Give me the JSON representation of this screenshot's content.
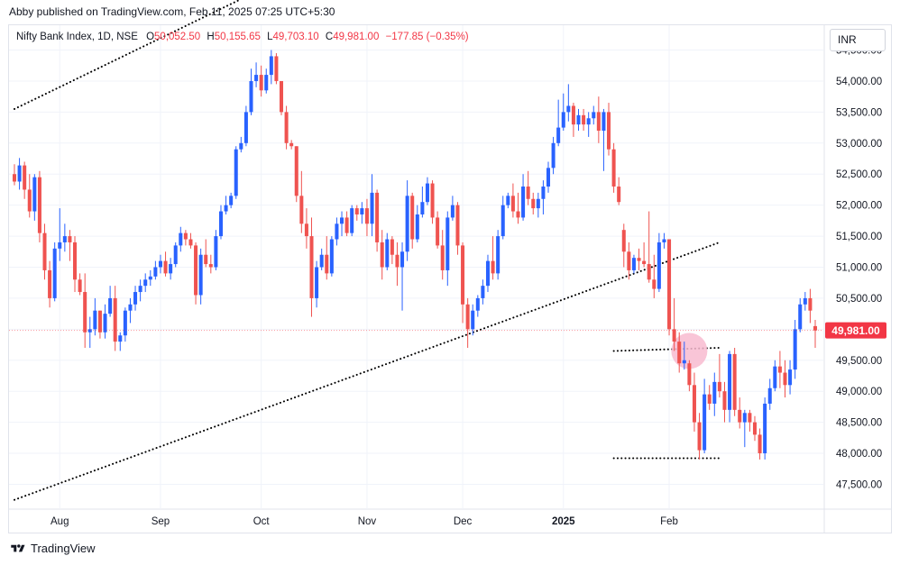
{
  "header": {
    "published_line": "Abby published on TradingView.com, Feb 11, 2025 07:25 UTC+5:30"
  },
  "legend": {
    "symbol": "Nifty Bank Index, 1D, NSE",
    "o_label": "O",
    "o_value": "50,052.50",
    "h_label": "H",
    "h_value": "50,155.65",
    "l_label": "L",
    "l_value": "49,703.10",
    "c_label": "C",
    "c_value": "49,981.00",
    "change": "−177.85 (−0.35%)"
  },
  "currency": "INR",
  "last_price_label": "49,981.00",
  "footer": {
    "brand": "TradingView"
  },
  "colors": {
    "up": "#2962ff",
    "down": "#ef5350",
    "grid": "#f0f3fa",
    "last_price_bg": "#f23645",
    "highlight": "#f8bbd0",
    "trendline": "#000000"
  },
  "chart_data": {
    "type": "candlestick",
    "title": "Nifty Bank Index, 1D, NSE",
    "ylim": [
      47100,
      54900
    ],
    "y_ticks": [
      {
        "value": 47500,
        "label": "47,500.00"
      },
      {
        "value": 48000,
        "label": "48,000.00"
      },
      {
        "value": 48500,
        "label": "48,500.00"
      },
      {
        "value": 49000,
        "label": "49,000.00"
      },
      {
        "value": 49500,
        "label": "49,500.00"
      },
      {
        "value": 50000,
        "label": "50,000.00"
      },
      {
        "value": 50500,
        "label": "50,500.00"
      },
      {
        "value": 51000,
        "label": "51,000.00"
      },
      {
        "value": 51500,
        "label": "51,500.00"
      },
      {
        "value": 52000,
        "label": "52,000.00"
      },
      {
        "value": 52500,
        "label": "52,500.00"
      },
      {
        "value": 53000,
        "label": "53,000.00"
      },
      {
        "value": 53500,
        "label": "53,500.00"
      },
      {
        "value": 54000,
        "label": "54,000.00"
      },
      {
        "value": 54500,
        "label": "54,500.00"
      }
    ],
    "x_ticks": [
      {
        "index": 9,
        "label": "Aug"
      },
      {
        "index": 29,
        "label": "Sep"
      },
      {
        "index": 49,
        "label": "Oct"
      },
      {
        "index": 70,
        "label": "Nov"
      },
      {
        "index": 89,
        "label": "Dec"
      },
      {
        "index": 109,
        "label": "2025"
      },
      {
        "index": 130,
        "label": "Feb"
      }
    ],
    "candles": [
      [
        52500,
        52660,
        52320,
        52380
      ],
      [
        52380,
        52760,
        52250,
        52640
      ],
      [
        52640,
        52700,
        52100,
        52250
      ],
      [
        52250,
        52500,
        51800,
        51900
      ],
      [
        51900,
        52500,
        51750,
        52450
      ],
      [
        52450,
        52550,
        51400,
        51550
      ],
      [
        51550,
        51700,
        50800,
        50950
      ],
      [
        50950,
        51100,
        50350,
        50500
      ],
      [
        50500,
        51400,
        50450,
        51300
      ],
      [
        51300,
        51950,
        51100,
        51400
      ],
      [
        51400,
        51700,
        51250,
        51500
      ],
      [
        51500,
        51600,
        51100,
        51400
      ],
      [
        51400,
        51500,
        50600,
        50800
      ],
      [
        50800,
        50900,
        50550,
        50600
      ],
      [
        50600,
        50900,
        49700,
        49950
      ],
      [
        49950,
        50200,
        49700,
        50000
      ],
      [
        50000,
        50500,
        49900,
        50300
      ],
      [
        50300,
        50300,
        49850,
        49950
      ],
      [
        49950,
        50400,
        49850,
        50250
      ],
      [
        50250,
        50700,
        50200,
        50500
      ],
      [
        50500,
        50700,
        49650,
        49800
      ],
      [
        49800,
        49950,
        49650,
        49900
      ],
      [
        49900,
        50350,
        49800,
        50300
      ],
      [
        50300,
        50500,
        50100,
        50400
      ],
      [
        50400,
        50700,
        50300,
        50600
      ],
      [
        50600,
        50800,
        50450,
        50700
      ],
      [
        50700,
        50900,
        50600,
        50800
      ],
      [
        50800,
        50950,
        50700,
        50850
      ],
      [
        50850,
        51100,
        50800,
        51000
      ],
      [
        51000,
        51200,
        50900,
        51100
      ],
      [
        51100,
        51250,
        50850,
        50900
      ],
      [
        50900,
        51150,
        50800,
        51050
      ],
      [
        51050,
        51400,
        51000,
        51350
      ],
      [
        51350,
        51650,
        51250,
        51550
      ],
      [
        51550,
        51600,
        51350,
        51450
      ],
      [
        51450,
        51550,
        51300,
        51350
      ],
      [
        51350,
        51400,
        50400,
        50550
      ],
      [
        50550,
        51300,
        50400,
        51200
      ],
      [
        51200,
        51450,
        51000,
        51050
      ],
      [
        51050,
        51200,
        50900,
        51000
      ],
      [
        51000,
        51600,
        50950,
        51500
      ],
      [
        51500,
        52000,
        51450,
        51900
      ],
      [
        51900,
        52150,
        51850,
        52000
      ],
      [
        52000,
        52200,
        51950,
        52150
      ],
      [
        52150,
        52950,
        52100,
        52900
      ],
      [
        52900,
        53100,
        52850,
        53000
      ],
      [
        53000,
        53600,
        52950,
        53500
      ],
      [
        53500,
        54200,
        53450,
        54000
      ],
      [
        54000,
        54300,
        53900,
        54100
      ],
      [
        54100,
        54250,
        53750,
        53850
      ],
      [
        53850,
        54200,
        53800,
        54100
      ],
      [
        54100,
        54500,
        53950,
        54400
      ],
      [
        54400,
        54450,
        53950,
        54000
      ],
      [
        54000,
        54000,
        53450,
        53500
      ],
      [
        53500,
        53600,
        52900,
        53000
      ],
      [
        53000,
        53050,
        52900,
        52950
      ],
      [
        52950,
        52950,
        52050,
        52150
      ],
      [
        52150,
        52550,
        51550,
        51700
      ],
      [
        51700,
        51950,
        51300,
        51500
      ],
      [
        51500,
        51800,
        50200,
        50500
      ],
      [
        50500,
        51100,
        50350,
        51000
      ],
      [
        51000,
        51300,
        50950,
        51200
      ],
      [
        51200,
        51500,
        50800,
        50900
      ],
      [
        50900,
        51500,
        50850,
        51450
      ],
      [
        51450,
        51800,
        51350,
        51700
      ],
      [
        51700,
        51900,
        51500,
        51800
      ],
      [
        51800,
        51900,
        51500,
        51550
      ],
      [
        51550,
        52000,
        51500,
        51950
      ],
      [
        51950,
        52000,
        51750,
        51850
      ],
      [
        51850,
        52050,
        51700,
        51950
      ],
      [
        51950,
        52100,
        51500,
        51700
      ],
      [
        51700,
        52500,
        51500,
        52200
      ],
      [
        52200,
        52250,
        51250,
        51400
      ],
      [
        51400,
        51600,
        50800,
        51000
      ],
      [
        51000,
        51550,
        50950,
        51450
      ],
      [
        51450,
        51500,
        51050,
        51200
      ],
      [
        51200,
        51400,
        50700,
        51000
      ],
      [
        51000,
        51400,
        50300,
        51250
      ],
      [
        51250,
        52400,
        51100,
        52150
      ],
      [
        52150,
        52200,
        51300,
        51450
      ],
      [
        51450,
        52000,
        51400,
        51850
      ],
      [
        51850,
        52300,
        51800,
        52050
      ],
      [
        52050,
        52450,
        52000,
        52350
      ],
      [
        52350,
        52400,
        51700,
        51800
      ],
      [
        51800,
        51900,
        51300,
        51350
      ],
      [
        51350,
        51600,
        50800,
        50950
      ],
      [
        50950,
        51900,
        50700,
        51800
      ],
      [
        51800,
        52150,
        51750,
        52000
      ],
      [
        52000,
        52050,
        51200,
        51350
      ],
      [
        51350,
        51400,
        50100,
        50400
      ],
      [
        50400,
        50500,
        49700,
        50000
      ],
      [
        50000,
        50400,
        49900,
        50300
      ],
      [
        50300,
        50550,
        50200,
        50500
      ],
      [
        50500,
        50800,
        50400,
        50700
      ],
      [
        50700,
        51200,
        50600,
        51100
      ],
      [
        51100,
        51500,
        50800,
        50900
      ],
      [
        50900,
        51600,
        50800,
        51500
      ],
      [
        51500,
        52150,
        51450,
        52000
      ],
      [
        52000,
        52200,
        51950,
        52150
      ],
      [
        52150,
        52350,
        51800,
        51900
      ],
      [
        51900,
        52200,
        51700,
        51800
      ],
      [
        51800,
        52500,
        51750,
        52300
      ],
      [
        52300,
        52550,
        52000,
        52100
      ],
      [
        52100,
        52200,
        51850,
        51950
      ],
      [
        51950,
        52200,
        51800,
        52100
      ],
      [
        52100,
        52400,
        51850,
        52300
      ],
      [
        52300,
        52700,
        52200,
        52600
      ],
      [
        52600,
        53100,
        52500,
        53000
      ],
      [
        53000,
        53700,
        52950,
        53250
      ],
      [
        53250,
        53800,
        53200,
        53500
      ],
      [
        53500,
        53950,
        53350,
        53600
      ],
      [
        53600,
        53650,
        53100,
        53300
      ],
      [
        53300,
        53550,
        53200,
        53450
      ],
      [
        53450,
        53550,
        53200,
        53300
      ],
      [
        53300,
        53500,
        53100,
        53400
      ],
      [
        53400,
        53600,
        53300,
        53500
      ],
      [
        53500,
        53750,
        53000,
        53200
      ],
      [
        53200,
        53550,
        52550,
        53500
      ],
      [
        53500,
        53650,
        52800,
        52900
      ],
      [
        52900,
        53000,
        52200,
        52300
      ],
      [
        52300,
        52450,
        52000,
        52050
      ],
      [
        51600,
        51700,
        51000,
        51250
      ],
      [
        51250,
        51400,
        50800,
        50950
      ],
      [
        50950,
        51200,
        50900,
        51150
      ],
      [
        51150,
        51300,
        50950,
        51100
      ],
      [
        51100,
        51400,
        51000,
        51050
      ],
      [
        51050,
        51900,
        50750,
        50800
      ],
      [
        50800,
        51200,
        50500,
        50650
      ],
      [
        50650,
        51550,
        50600,
        51400
      ],
      [
        51400,
        51550,
        51300,
        51450
      ],
      [
        51450,
        51450,
        49900,
        50000
      ],
      [
        50000,
        50500,
        49650,
        49800
      ],
      [
        49800,
        49950,
        49300,
        49450
      ],
      [
        49450,
        49800,
        49350,
        49500
      ],
      [
        49450,
        49500,
        49000,
        49100
      ],
      [
        49100,
        49300,
        48350,
        48500
      ],
      [
        48500,
        48650,
        47900,
        48050
      ],
      [
        48050,
        49200,
        48000,
        48950
      ],
      [
        48950,
        49100,
        48700,
        48800
      ],
      [
        48800,
        49300,
        48600,
        49150
      ],
      [
        49150,
        49600,
        48900,
        49000
      ],
      [
        49000,
        49150,
        48500,
        48700
      ],
      [
        48700,
        49650,
        48500,
        49600
      ],
      [
        49600,
        49700,
        48600,
        48700
      ],
      [
        48700,
        48900,
        48400,
        48500
      ],
      [
        48500,
        48700,
        48100,
        48650
      ],
      [
        48650,
        48700,
        48350,
        48500
      ],
      [
        48500,
        48600,
        48200,
        48300
      ],
      [
        48300,
        48400,
        47900,
        48000
      ],
      [
        48000,
        48900,
        47900,
        48800
      ],
      [
        48800,
        49200,
        48700,
        49050
      ],
      [
        49050,
        49500,
        49000,
        49400
      ],
      [
        49400,
        49650,
        49050,
        49300
      ],
      [
        49300,
        49500,
        48900,
        49100
      ],
      [
        49100,
        49500,
        48950,
        49350
      ],
      [
        49350,
        50150,
        49200,
        50000
      ],
      [
        50000,
        50500,
        49950,
        50400
      ],
      [
        50400,
        50600,
        50300,
        50500
      ],
      [
        50500,
        50650,
        50100,
        50300
      ],
      [
        50050,
        50150,
        49700,
        49980
      ]
    ],
    "trendlines": [
      {
        "from": {
          "index": 0,
          "value": 53550
        },
        "to": {
          "index": 47,
          "value": 55400
        }
      },
      {
        "from": {
          "index": 0,
          "value": 47250
        },
        "to": {
          "index": 140,
          "value": 51400
        }
      },
      {
        "from": {
          "index": 119,
          "value": 49650
        },
        "to": {
          "index": 140,
          "value": 49700
        }
      },
      {
        "from": {
          "index": 119,
          "value": 47920
        },
        "to": {
          "index": 140,
          "value": 47920
        }
      }
    ],
    "highlight": {
      "index": 134,
      "value": 49650
    },
    "last_price": 49981
  }
}
